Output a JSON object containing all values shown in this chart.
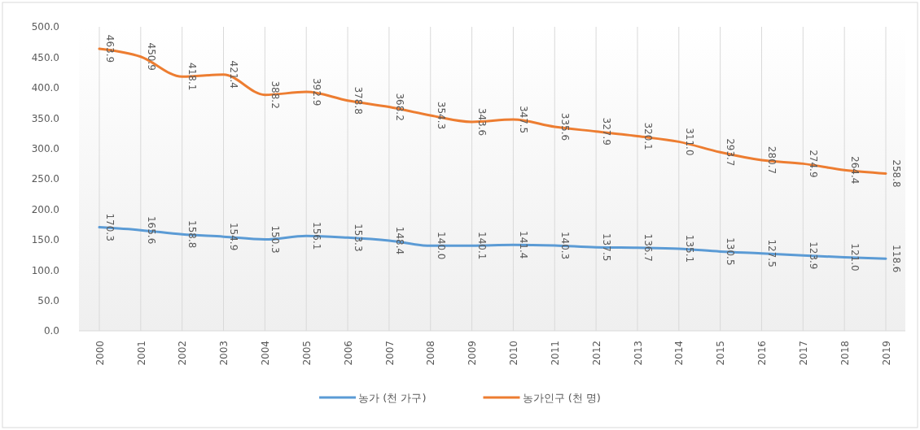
{
  "chart_data": {
    "type": "line",
    "categories": [
      "2000",
      "2001",
      "2002",
      "2003",
      "2004",
      "2005",
      "2006",
      "2007",
      "2008",
      "2009",
      "2010",
      "2011",
      "2012",
      "2013",
      "2014",
      "2015",
      "2016",
      "2017",
      "2018",
      "2019"
    ],
    "series": [
      {
        "name": "농가 (천 가구)",
        "color": "#5b9bd5",
        "values": [
          170.3,
          165.6,
          158.8,
          154.9,
          150.3,
          156.1,
          153.3,
          148.4,
          140.0,
          140.1,
          141.4,
          140.3,
          137.5,
          136.7,
          135.1,
          130.5,
          127.5,
          123.9,
          121.0,
          118.6
        ],
        "value_labels": [
          "170.3",
          "165.6",
          "158.8",
          "154.9",
          "150.3",
          "156.1",
          "153.3",
          "148.4",
          "140.0",
          "140.1",
          "141.4",
          "140.3",
          "137.5",
          "136.7",
          "135.1",
          "130.5",
          "127.5",
          "123.9",
          "121.0",
          "118.6"
        ]
      },
      {
        "name": "농가인구 (천 명)",
        "color": "#ed7d31",
        "values": [
          463.9,
          450.9,
          418.1,
          421.4,
          388.2,
          392.9,
          378.8,
          368.2,
          354.3,
          343.6,
          347.5,
          335.6,
          327.9,
          320.1,
          311.0,
          293.7,
          280.7,
          274.9,
          264.4,
          258.8
        ],
        "value_labels": [
          "463.9",
          "450.9",
          "418.1",
          "421.4",
          "388.2",
          "392.9",
          "378.8",
          "368.2",
          "354.3",
          "343.6",
          "347.5",
          "335.6",
          "327.9",
          "320.1",
          "311.0",
          "293.7",
          "280.7",
          "274.9",
          "264.4",
          "258.8"
        ]
      }
    ],
    "ylim": [
      0,
      500
    ],
    "yticks": [
      {
        "value": 0,
        "label": "0.0"
      },
      {
        "value": 50,
        "label": "50.0"
      },
      {
        "value": 100,
        "label": "100.0"
      },
      {
        "value": 150,
        "label": "150.0"
      },
      {
        "value": 200,
        "label": "200.0"
      },
      {
        "value": 250,
        "label": "250.0"
      },
      {
        "value": 300,
        "label": "300.0"
      },
      {
        "value": 350,
        "label": "350.0"
      },
      {
        "value": 400,
        "label": "400.0"
      },
      {
        "value": 450,
        "label": "450.0"
      },
      {
        "value": 500,
        "label": "500.0"
      }
    ],
    "grid": "x",
    "legend": "bottom",
    "marker": "none",
    "line_style": "solid"
  }
}
